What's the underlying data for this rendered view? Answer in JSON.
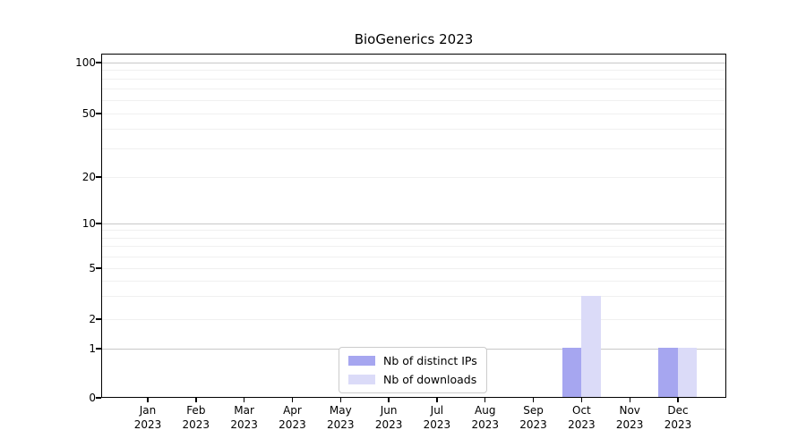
{
  "figure": {
    "background": "#ffffff"
  },
  "chart_data": {
    "type": "bar",
    "title": "BioGenerics 2023",
    "categories": [
      "Jan",
      "Feb",
      "Mar",
      "Apr",
      "May",
      "Jun",
      "Jul",
      "Aug",
      "Sep",
      "Oct",
      "Nov",
      "Dec"
    ],
    "x_tick_second_line": "2023",
    "series": [
      {
        "name": "Nb of distinct IPs",
        "color": "#a6a6f0",
        "values": [
          0,
          0,
          0,
          0,
          0,
          0,
          0,
          0,
          0,
          1,
          0,
          1
        ]
      },
      {
        "name": "Nb of downloads",
        "color": "#dbdbf8",
        "values": [
          0,
          0,
          0,
          0,
          0,
          0,
          0,
          0,
          0,
          3,
          0,
          1
        ]
      }
    ],
    "y_axis": {
      "tick_labels": [
        "0",
        "1",
        "2",
        "5",
        "10",
        "20",
        "50",
        "100"
      ],
      "tick_values": [
        0,
        1,
        2,
        5,
        10,
        20,
        50,
        100
      ],
      "scale": "log-like",
      "ylim": [
        0,
        100
      ]
    },
    "xlabel": "",
    "ylabel": "",
    "legend": {
      "position": "lower center",
      "entries": [
        "Nb of distinct IPs",
        "Nb of downloads"
      ]
    },
    "grid": {
      "major": true,
      "minor": true
    }
  },
  "colors": {
    "bar_distinct_ips": "#a6a6f0",
    "bar_downloads": "#dbdbf8",
    "major_grid": "#c8c8c8",
    "minor_grid": "#f0f0f0",
    "axis": "#000000",
    "legend_border": "#cccccc"
  }
}
